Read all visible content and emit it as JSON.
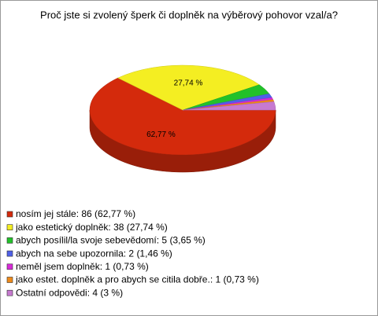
{
  "chart_data": {
    "type": "pie",
    "title": "Proč jste si zvolený šperk či doplněk na výběrový pohovor vzal/a?",
    "categories": [
      "nosím jej stále: 86 (62,77 %)",
      "jako estetický doplněk: 38 (27,74 %)",
      "abych posílil/la svoje sebevědomí: 5 (3,65 %)",
      "abych na sebe upozornila: 2 (1,46 %)",
      "neměl jsem doplněk: 1 (0,73 %)",
      "jako estet. doplněk a pro abych se citila dobře.: 1 (0,73 %)",
      "Ostatní odpovědi: 4 (3 %)"
    ],
    "values": [
      62.77,
      27.74,
      3.65,
      1.46,
      0.73,
      0.73,
      3
    ],
    "value_labels": [
      "62,77 %",
      "27,74 %",
      null,
      null,
      null,
      null,
      null
    ],
    "colors": [
      "#d42a0c",
      "#f4ee22",
      "#22c12a",
      "#4f60e8",
      "#d82bd8",
      "#ee8a1a",
      "#c77ad0"
    ],
    "legend": "bottom-left"
  }
}
